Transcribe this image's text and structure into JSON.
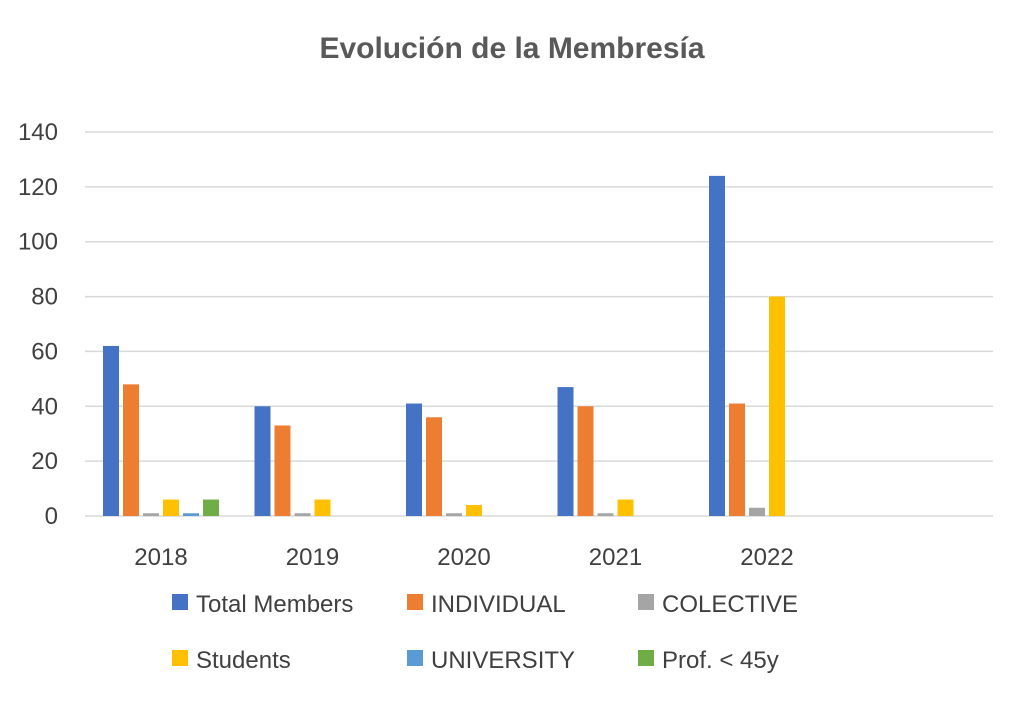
{
  "chart_data": {
    "type": "bar",
    "title": "Evolución de la Membresía",
    "categories": [
      "2018",
      "2019",
      "2020",
      "2021",
      "2022"
    ],
    "ylim": [
      0,
      140
    ],
    "yticks": [
      0,
      20,
      40,
      60,
      80,
      100,
      120,
      140
    ],
    "grid": true,
    "legend_position": "bottom",
    "series": [
      {
        "name": "Total Members",
        "color": "#4472C4",
        "values": [
          62,
          40,
          41,
          47,
          124
        ]
      },
      {
        "name": "INDIVIDUAL",
        "color": "#ED7D31",
        "values": [
          48,
          33,
          36,
          40,
          41
        ]
      },
      {
        "name": "COLECTIVE",
        "color": "#A5A5A5",
        "values": [
          1,
          1,
          1,
          1,
          3
        ]
      },
      {
        "name": "Students",
        "color": "#FFC000",
        "values": [
          6,
          6,
          4,
          6,
          80
        ]
      },
      {
        "name": "UNIVERSITY",
        "color": "#5B9BD5",
        "values": [
          1,
          0,
          0,
          0,
          0
        ]
      },
      {
        "name": "Prof. < 45y",
        "color": "#70AD47",
        "values": [
          6,
          0,
          0,
          0,
          0
        ]
      }
    ]
  }
}
